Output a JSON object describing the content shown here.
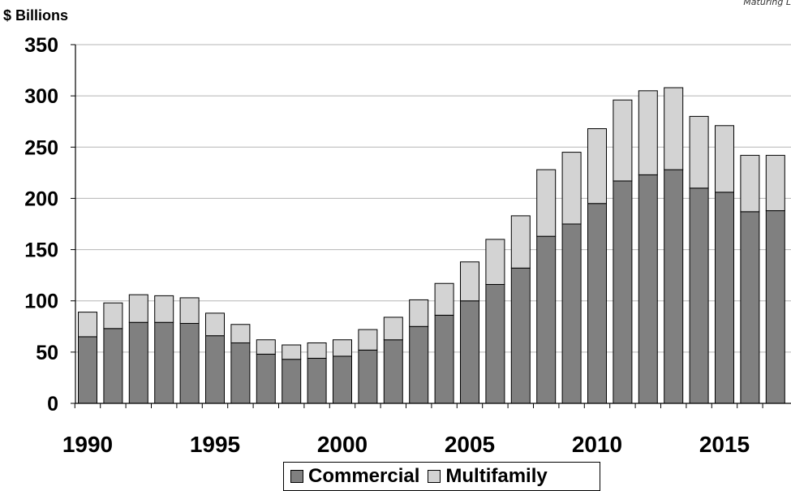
{
  "corner_note": "Maturing L",
  "chart_data": {
    "type": "bar",
    "stacked": true,
    "ylabel": "$ Billions",
    "ylim": [
      0,
      350
    ],
    "yticks": [
      0,
      50,
      100,
      150,
      200,
      250,
      300,
      350
    ],
    "grid": "horizontal",
    "legend_position": "bottom",
    "x": [
      1990,
      1991,
      1992,
      1993,
      1994,
      1995,
      1996,
      1997,
      1998,
      1999,
      2000,
      2001,
      2002,
      2003,
      2004,
      2005,
      2006,
      2007,
      2008,
      2009,
      2010,
      2011,
      2012,
      2013,
      2014,
      2015,
      2016,
      2017
    ],
    "xtick_labels": [
      "1990",
      "1995",
      "2000",
      "2005",
      "2010",
      "2015"
    ],
    "series": [
      {
        "name": "Commercial",
        "color": "#808080",
        "values": [
          65,
          73,
          79,
          79,
          78,
          66,
          59,
          48,
          43,
          44,
          46,
          52,
          62,
          75,
          86,
          100,
          116,
          132,
          163,
          175,
          195,
          217,
          223,
          228,
          210,
          206,
          187,
          188
        ]
      },
      {
        "name": "Multifamily",
        "color": "#d3d3d3",
        "values": [
          24,
          25,
          27,
          26,
          25,
          22,
          18,
          14,
          14,
          15,
          16,
          20,
          22,
          26,
          31,
          38,
          44,
          51,
          65,
          70,
          73,
          79,
          82,
          80,
          70,
          65,
          55,
          54
        ]
      }
    ]
  }
}
